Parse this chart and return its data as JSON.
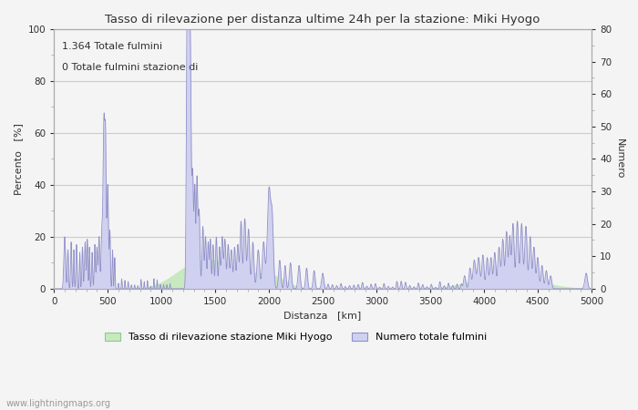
{
  "title": "Tasso di rilevazione per distanza ultime 24h per la stazione: Miki Hyogo",
  "xlabel": "Distanza   [km]",
  "ylabel_left": "Percento   [%]",
  "ylabel_right": "Numero",
  "annotation_line1": "1.364 Totale fulmini",
  "annotation_line2": "0 Totale fulmini stazione di",
  "legend_label1": "Tasso di rilevazione stazione Miki Hyogo",
  "legend_label2": "Numero totale fulmini",
  "watermark": "www.lightningmaps.org",
  "xlim": [
    0,
    5000
  ],
  "ylim_left": [
    0,
    100
  ],
  "ylim_right": [
    0,
    80
  ],
  "xticks": [
    0,
    500,
    1000,
    1500,
    2000,
    2500,
    3000,
    3500,
    4000,
    4500,
    5000
  ],
  "yticks_left": [
    0,
    20,
    40,
    60,
    80,
    100
  ],
  "yticks_right": [
    0,
    10,
    20,
    30,
    40,
    50,
    60,
    70,
    80
  ],
  "fill_color_green": "#c8e8c0",
  "fill_color_blue": "#d0d0f0",
  "line_color": "#9090c8",
  "bg_color": "#f4f4f4",
  "grid_color": "#cccccc",
  "font_color": "#303030",
  "spine_color": "#aaaaaa"
}
